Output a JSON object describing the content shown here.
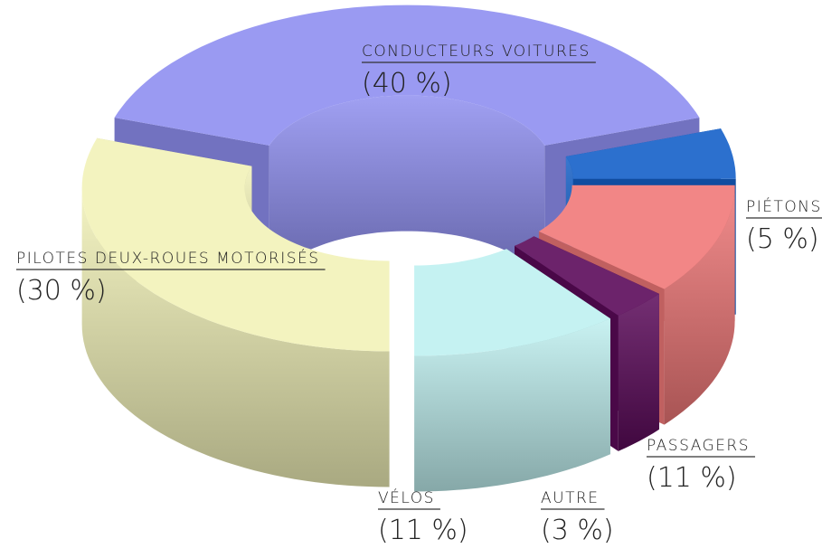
{
  "chart_data": {
    "type": "donut3d",
    "categories": [
      "CONDUCTEURS VOITURES",
      "PIÉTONS",
      "PASSAGERS",
      "AUTRE",
      "VÉLOS",
      "PILOTES DEUX-ROUES MOTORISÉS"
    ],
    "values": [
      40,
      5,
      11,
      3,
      11,
      30
    ],
    "value_labels": [
      "(40 %)",
      "(5 %)",
      "(11 %)",
      "(3 %)",
      "(11 %)",
      "(30 %)"
    ],
    "colors": [
      "#8f8ff0",
      "#1560c8",
      "#f07878",
      "#5c0a5a",
      "#bff0f0",
      "#f2f2b8"
    ]
  }
}
